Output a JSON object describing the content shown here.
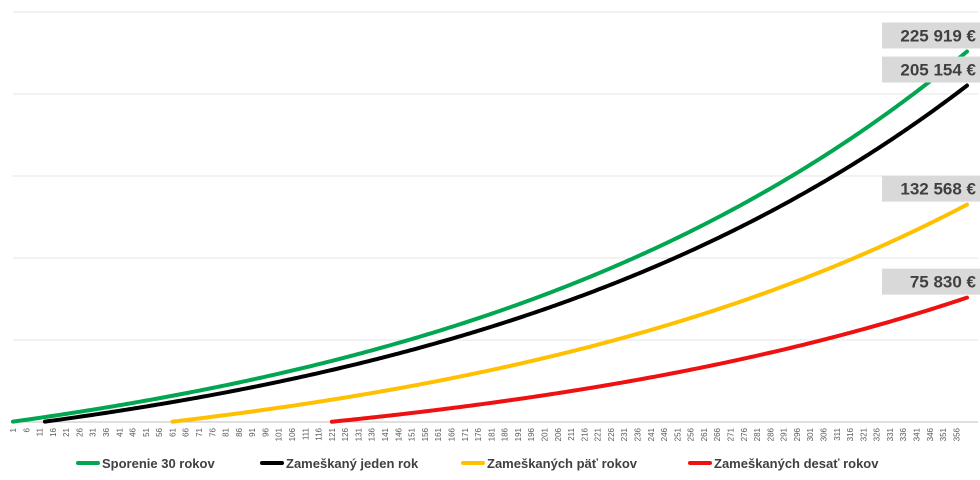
{
  "chart_data": {
    "type": "line",
    "title": "",
    "xlabel": "",
    "ylabel": "",
    "x_range": [
      1,
      360
    ],
    "x_tick_start": 1,
    "x_tick_step": 5,
    "ylim": [
      0,
      250000
    ],
    "y_gridlines": [
      0,
      50000,
      100000,
      150000,
      200000,
      250000
    ],
    "y_axis_labels_visible": false,
    "grid": true,
    "legend_position": "bottom",
    "series": [
      {
        "name": "Sporenie 30 rokov",
        "color": "#00a650",
        "start_month": 1,
        "end_value": 225919,
        "end_label": "225 919 €"
      },
      {
        "name": "Zameškaný jeden rok",
        "color": "#000000",
        "start_month": 13,
        "end_value": 205154,
        "end_label": "205 154 €"
      },
      {
        "name": "Zameškaných päť rokov",
        "color": "#ffc000",
        "start_month": 61,
        "end_value": 132568,
        "end_label": "132 568 €"
      },
      {
        "name": "Zameškaných desať rokov",
        "color": "#ee1111",
        "start_month": 121,
        "end_value": 75830,
        "end_label": "75 830 €"
      }
    ]
  }
}
